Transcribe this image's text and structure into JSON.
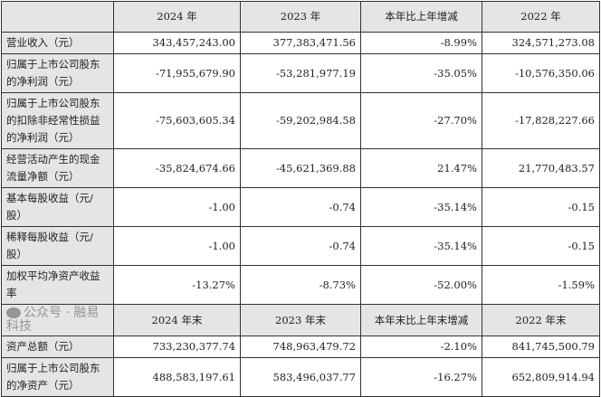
{
  "header1": [
    "",
    "2024 年",
    "2023 年",
    "本年比上年增减",
    "2022 年"
  ],
  "rows1": [
    [
      "营业收入（元）",
      "343,457,243.00",
      "377,383,471.56",
      "-8.99%",
      "324,571,273.08"
    ],
    [
      "归属于上市公司股东的净利润（元）",
      "-71,955,679.90",
      "-53,281,977.19",
      "-35.05%",
      "-10,576,350.06"
    ],
    [
      "归属于上市公司股东的扣除非经常性损益的净利润（元）",
      "-75,603,605.34",
      "-59,202,984.58",
      "-27.70%",
      "-17,828,227.66"
    ],
    [
      "经营活动产生的现金流量净额（元）",
      "-35,824,674.66",
      "-45,621,369.88",
      "21.47%",
      "21,770,483.57"
    ],
    [
      "基本每股收益（元/股）",
      "-1.00",
      "-0.74",
      "-35.14%",
      "-0.15"
    ],
    [
      "稀释每股收益（元/股）",
      "-1.00",
      "-0.74",
      "-35.14%",
      "-0.15"
    ],
    [
      "加权平均净资产收益率",
      "-13.27%",
      "-8.73%",
      "-52.00%",
      "-1.59%"
    ]
  ],
  "header2": [
    "",
    "2024 年末",
    "2023 年末",
    "本年末比上年末增减",
    "2022 年末"
  ],
  "rows2": [
    [
      "资产总额（元）",
      "733,230,377.74",
      "748,963,479.72",
      "-2.10%",
      "841,745,500.79"
    ],
    [
      "归属于上市公司股东的净资产（元）",
      "488,583,197.61",
      "583,496,037.77",
      "-16.27%",
      "652,809,914.94"
    ]
  ],
  "watermark": {
    "text": "公众号 · 融易科技",
    "icon": "wechat-icon"
  }
}
